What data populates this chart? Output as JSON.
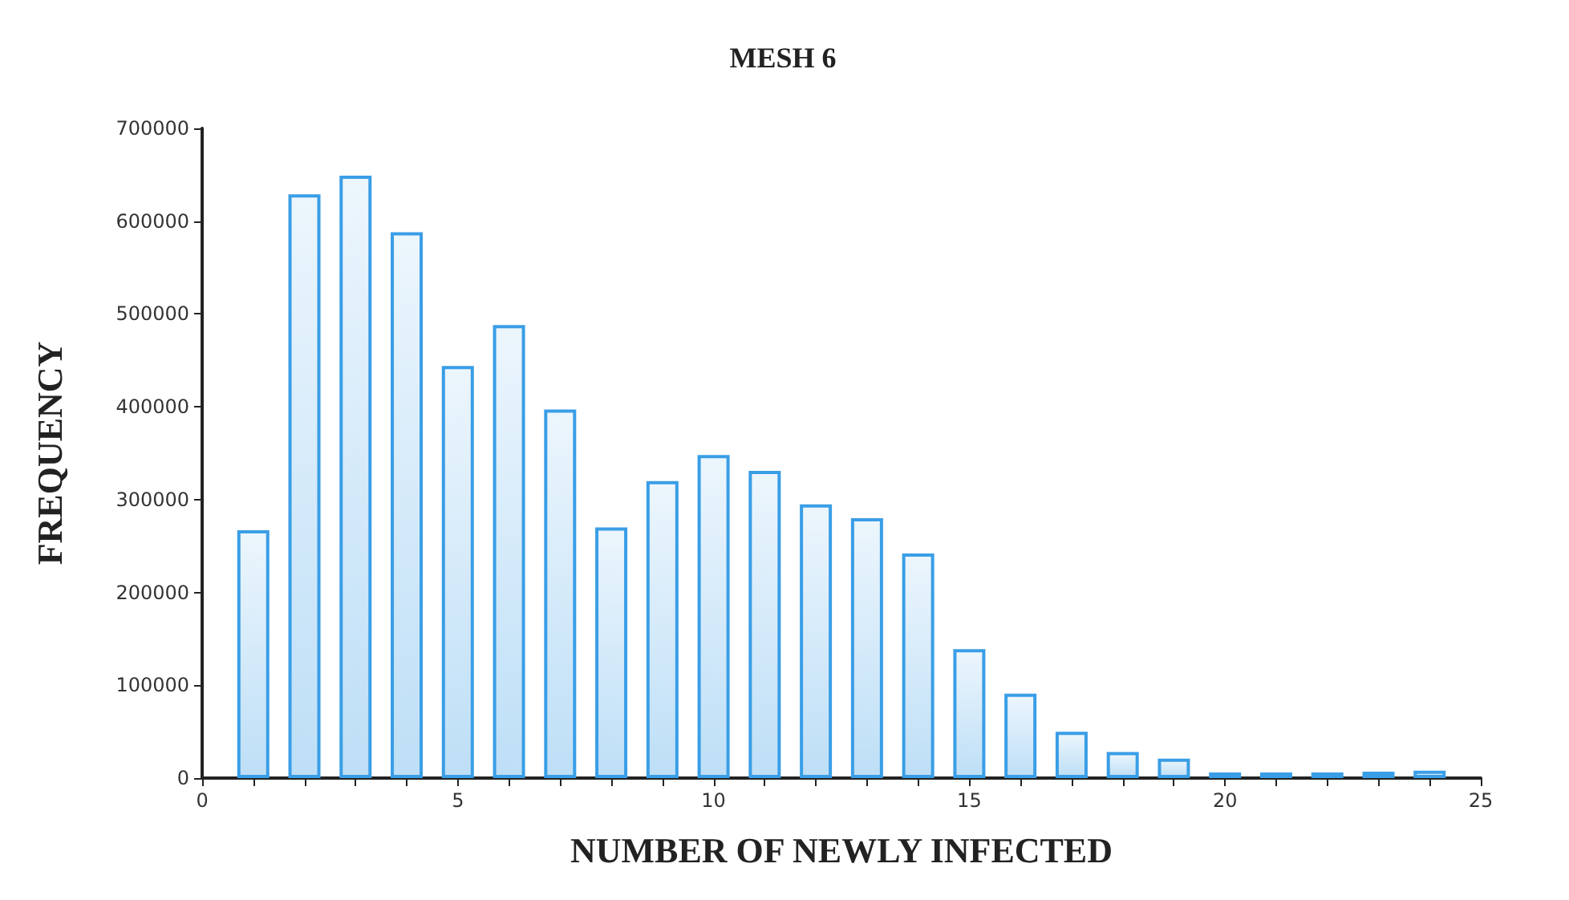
{
  "chart_data": {
    "type": "bar",
    "title": "MESH 6",
    "xlabel": "NUMBER OF NEWLY INFECTED",
    "ylabel": "FREQUENCY",
    "x": [
      1,
      2,
      3,
      4,
      5,
      6,
      7,
      8,
      9,
      10,
      11,
      12,
      13,
      14,
      15,
      16,
      17,
      18,
      19,
      20,
      21,
      22,
      23,
      24
    ],
    "values": [
      267000,
      629000,
      649000,
      588000,
      444000,
      488000,
      397000,
      270000,
      320000,
      348000,
      331000,
      295000,
      280000,
      242000,
      139000,
      91000,
      50000,
      28000,
      21000,
      6000,
      6000,
      6000,
      7000,
      8000
    ],
    "color": "#3a9ee6",
    "xlim": [
      0,
      25
    ],
    "xticks": [
      0,
      {
        "value": 1,
        "label": null
      },
      {
        "value": 2,
        "label": null
      },
      {
        "value": 3,
        "label": null
      },
      {
        "value": 4,
        "label": null
      },
      5,
      {
        "value": 6,
        "label": null
      },
      {
        "value": 7,
        "label": null
      },
      {
        "value": 8,
        "label": null
      },
      {
        "value": 9,
        "label": null
      },
      10,
      {
        "value": 11,
        "label": null
      },
      {
        "value": 12,
        "label": null
      },
      {
        "value": 13,
        "label": null
      },
      {
        "value": 14,
        "label": null
      },
      15,
      {
        "value": 16,
        "label": null
      },
      {
        "value": 17,
        "label": null
      },
      {
        "value": 18,
        "label": null
      },
      {
        "value": 19,
        "label": null
      },
      20,
      {
        "value": 21,
        "label": null
      },
      {
        "value": 22,
        "label": null
      },
      {
        "value": 23,
        "label": null
      },
      {
        "value": 24,
        "label": null
      },
      25
    ],
    "ylim": [
      0,
      700000
    ],
    "yticks": [
      0,
      100000,
      200000,
      300000,
      400000,
      500000,
      600000,
      700000
    ],
    "grid": false
  }
}
